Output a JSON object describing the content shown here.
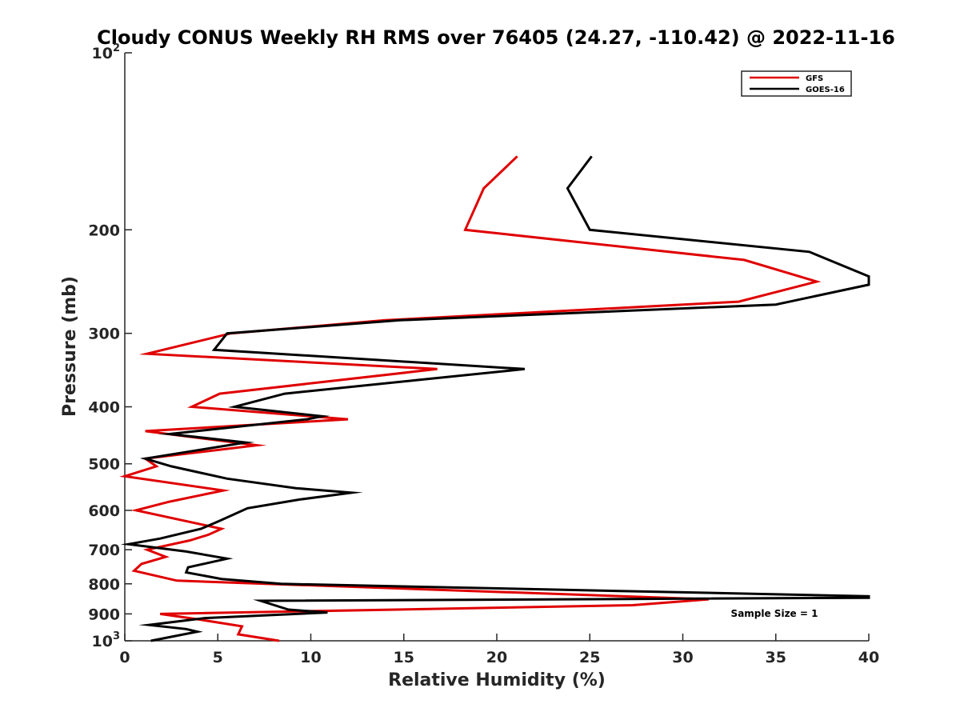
{
  "chart_data": {
    "type": "line",
    "title": "Cloudy CONUS Weekly RH RMS over 76405 (24.27, -110.42) @ 2022-11-16",
    "xlabel": "Relative Humidity (%)",
    "ylabel": "Pressure (mb)",
    "xlim": [
      0,
      40
    ],
    "ylim": [
      100,
      1000
    ],
    "y_scale": "log",
    "y_reversed": true,
    "x_ticks": [
      "0",
      "5",
      "10",
      "15",
      "20",
      "25",
      "30",
      "35",
      "40"
    ],
    "y_ticks": [
      {
        "value": 100,
        "label": "10",
        "exp": "2"
      },
      {
        "value": 200,
        "label": "200"
      },
      {
        "value": 300,
        "label": "300"
      },
      {
        "value": 400,
        "label": "400"
      },
      {
        "value": 500,
        "label": "500"
      },
      {
        "value": 600,
        "label": "600"
      },
      {
        "value": 700,
        "label": "700"
      },
      {
        "value": 800,
        "label": "800"
      },
      {
        "value": 900,
        "label": "900"
      },
      {
        "value": 1000,
        "label": "10",
        "exp": "3"
      }
    ],
    "legend_position": "top-right",
    "grid": false,
    "annotation": "Sample Size = 1",
    "series": [
      {
        "name": "GFS",
        "color": "#e00000",
        "points": [
          [
            21.1,
            150
          ],
          [
            19.3,
            170
          ],
          [
            18.3,
            200
          ],
          [
            33.3,
            225
          ],
          [
            37.2,
            245
          ],
          [
            33.0,
            265
          ],
          [
            14.0,
            285
          ],
          [
            5.7,
            300
          ],
          [
            1.2,
            325
          ],
          [
            16.8,
            345
          ],
          [
            5.1,
            380
          ],
          [
            3.6,
            400
          ],
          [
            12.0,
            420
          ],
          [
            1.1,
            440
          ],
          [
            7.1,
            465
          ],
          [
            1.1,
            490
          ],
          [
            1.7,
            505
          ],
          [
            0.0,
            525
          ],
          [
            5.3,
            555
          ],
          [
            2.4,
            580
          ],
          [
            0.6,
            600
          ],
          [
            5.2,
            645
          ],
          [
            4.5,
            660
          ],
          [
            3.5,
            675
          ],
          [
            1.2,
            700
          ],
          [
            2.2,
            720
          ],
          [
            0.9,
            740
          ],
          [
            0.5,
            760
          ],
          [
            2.8,
            790
          ],
          [
            31.4,
            850
          ],
          [
            27.3,
            870
          ],
          [
            1.9,
            900
          ],
          [
            4.0,
            920
          ],
          [
            6.3,
            945
          ],
          [
            6.2,
            960
          ],
          [
            6.1,
            975
          ],
          [
            8.3,
            1000
          ]
        ]
      },
      {
        "name": "GOES-16",
        "color": "#000000",
        "points": [
          [
            25.1,
            150
          ],
          [
            23.8,
            170
          ],
          [
            25.0,
            200
          ],
          [
            36.8,
            218
          ],
          [
            40.0,
            240
          ],
          [
            40.0,
            248
          ],
          [
            35.0,
            268
          ],
          [
            14.8,
            285
          ],
          [
            5.5,
            300
          ],
          [
            4.8,
            320
          ],
          [
            21.5,
            345
          ],
          [
            15.8,
            360
          ],
          [
            8.6,
            380
          ],
          [
            5.9,
            400
          ],
          [
            10.6,
            415
          ],
          [
            9.8,
            420
          ],
          [
            2.4,
            445
          ],
          [
            6.5,
            460
          ],
          [
            1.1,
            490
          ],
          [
            2.5,
            505
          ],
          [
            5.5,
            530
          ],
          [
            9.2,
            550
          ],
          [
            12.2,
            560
          ],
          [
            9.4,
            575
          ],
          [
            6.6,
            595
          ],
          [
            5.1,
            625
          ],
          [
            4.1,
            645
          ],
          [
            1.9,
            670
          ],
          [
            0.2,
            685
          ],
          [
            3.3,
            705
          ],
          [
            5.5,
            725
          ],
          [
            3.4,
            750
          ],
          [
            3.3,
            765
          ],
          [
            5.2,
            785
          ],
          [
            8.4,
            800
          ],
          [
            40.0,
            840
          ],
          [
            40.0,
            845
          ],
          [
            7.3,
            855
          ],
          [
            8.8,
            885
          ],
          [
            10.9,
            895
          ],
          [
            4.3,
            915
          ],
          [
            1.3,
            940
          ],
          [
            3.3,
            955
          ],
          [
            3.9,
            965
          ],
          [
            1.4,
            1000
          ]
        ]
      }
    ]
  }
}
